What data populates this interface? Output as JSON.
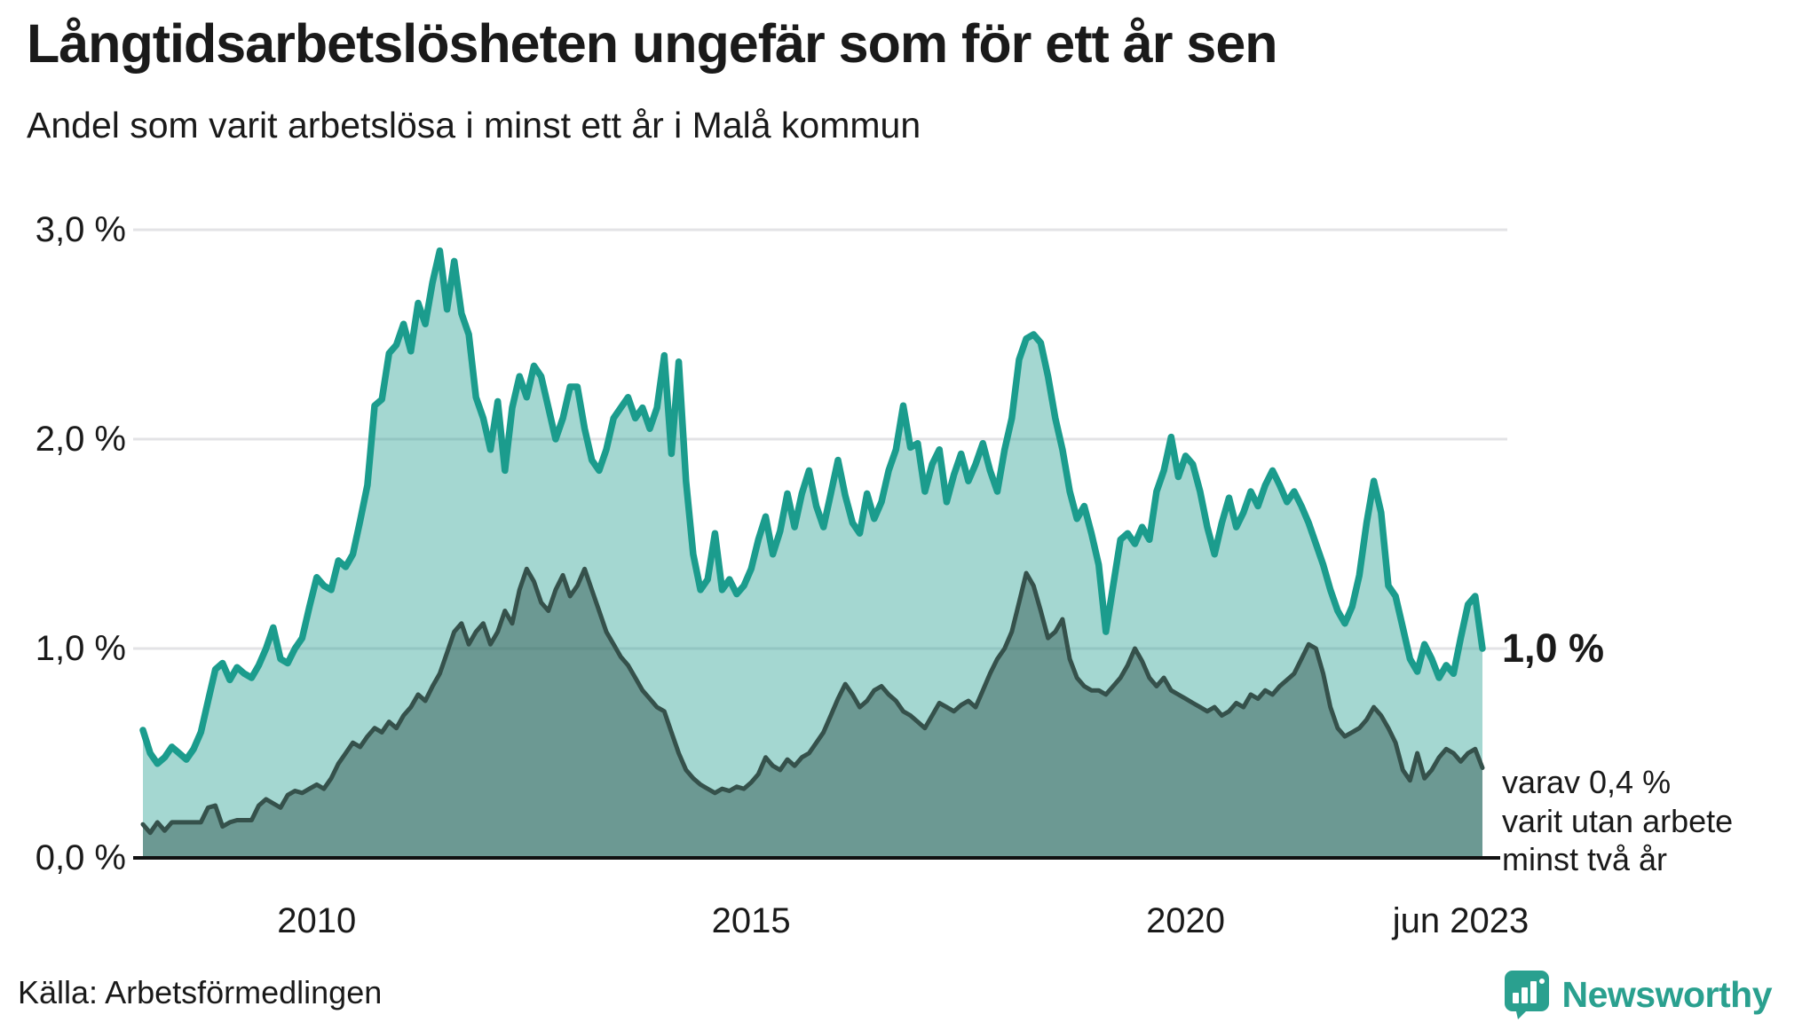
{
  "header": {
    "title": "Långtidsarbetslösheten ungefär som för ett år sen",
    "subtitle": "Andel som varit arbetslösa i minst ett år i Malå kommun"
  },
  "footer": {
    "source": "Källa: Arbetsförmedlingen",
    "logo_text": "Newsworthy",
    "logo_color": "#2aa08f"
  },
  "chart_data": {
    "type": "area",
    "title": "Andel som varit arbetslösa i minst ett år i Malå kommun",
    "x_start": "jan 2008",
    "x_end": "jun 2023",
    "x_interval": "monthly",
    "ylim": [
      0,
      3.0
    ],
    "unit": "%",
    "grid": "horizontal",
    "colors": {
      "line_1yr": "#1b9c8d",
      "fill_1yr": "rgba(27,156,141,0.40)",
      "line_2yr": "#35514b",
      "fill_2yr": "rgba(40,78,72,0.45)",
      "gridline": "#e3e3e6",
      "axis": "#111111"
    },
    "y_ticks": [
      {
        "label": "3,0 %",
        "value": 3.0
      },
      {
        "label": "2,0 %",
        "value": 2.0
      },
      {
        "label": "1,0 %",
        "value": 1.0
      },
      {
        "label": "0,0 %",
        "value": 0.0
      }
    ],
    "x_ticks": [
      {
        "label": "2010",
        "month_index": 24
      },
      {
        "label": "2015",
        "month_index": 84
      },
      {
        "label": "2020",
        "month_index": 144
      },
      {
        "label": "jun 2023",
        "month_index": 182
      }
    ],
    "end_labels": {
      "primary": "1,0 %",
      "secondary": [
        "varav 0,4 %",
        "varit utan arbete",
        "minst två år"
      ]
    },
    "series": [
      {
        "name": "Andel arbetslösa minst ett år",
        "end_value": 1.0,
        "values": [
          0.61,
          0.5,
          0.45,
          0.48,
          0.53,
          0.5,
          0.47,
          0.52,
          0.6,
          0.75,
          0.9,
          0.93,
          0.85,
          0.91,
          0.88,
          0.86,
          0.92,
          1.0,
          1.1,
          0.95,
          0.93,
          1.0,
          1.05,
          1.2,
          1.34,
          1.3,
          1.28,
          1.42,
          1.39,
          1.45,
          1.61,
          1.78,
          2.16,
          2.19,
          2.41,
          2.45,
          2.55,
          2.42,
          2.65,
          2.55,
          2.75,
          2.9,
          2.62,
          2.85,
          2.6,
          2.5,
          2.2,
          2.1,
          1.95,
          2.18,
          1.85,
          2.15,
          2.3,
          2.2,
          2.35,
          2.3,
          2.15,
          2.0,
          2.1,
          2.25,
          2.25,
          2.05,
          1.9,
          1.85,
          1.95,
          2.1,
          2.15,
          2.2,
          2.1,
          2.15,
          2.05,
          2.15,
          2.4,
          1.93,
          2.37,
          1.8,
          1.45,
          1.28,
          1.33,
          1.55,
          1.28,
          1.33,
          1.26,
          1.3,
          1.38,
          1.52,
          1.63,
          1.45,
          1.56,
          1.74,
          1.58,
          1.74,
          1.85,
          1.68,
          1.58,
          1.74,
          1.9,
          1.73,
          1.6,
          1.55,
          1.74,
          1.62,
          1.7,
          1.85,
          1.95,
          2.16,
          1.96,
          1.98,
          1.75,
          1.88,
          1.95,
          1.7,
          1.83,
          1.93,
          1.8,
          1.88,
          1.98,
          1.85,
          1.75,
          1.95,
          2.1,
          2.38,
          2.48,
          2.5,
          2.46,
          2.3,
          2.1,
          1.95,
          1.75,
          1.62,
          1.68,
          1.55,
          1.4,
          1.08,
          1.3,
          1.52,
          1.55,
          1.5,
          1.58,
          1.52,
          1.75,
          1.85,
          2.01,
          1.82,
          1.92,
          1.88,
          1.75,
          1.58,
          1.45,
          1.6,
          1.72,
          1.58,
          1.65,
          1.75,
          1.68,
          1.78,
          1.85,
          1.78,
          1.7,
          1.75,
          1.68,
          1.6,
          1.5,
          1.4,
          1.28,
          1.18,
          1.12,
          1.2,
          1.35,
          1.6,
          1.8,
          1.65,
          1.3,
          1.25,
          1.1,
          0.95,
          0.89,
          1.02,
          0.95,
          0.86,
          0.92,
          0.88,
          1.05,
          1.21,
          1.25,
          1.0
        ]
      },
      {
        "name": "varav utan arbete minst två år",
        "end_value": 0.4,
        "values": [
          0.16,
          0.12,
          0.17,
          0.13,
          0.17,
          0.17,
          0.17,
          0.17,
          0.17,
          0.24,
          0.25,
          0.15,
          0.17,
          0.18,
          0.18,
          0.18,
          0.25,
          0.28,
          0.26,
          0.24,
          0.3,
          0.32,
          0.31,
          0.33,
          0.35,
          0.33,
          0.38,
          0.45,
          0.5,
          0.55,
          0.53,
          0.58,
          0.62,
          0.6,
          0.65,
          0.62,
          0.68,
          0.72,
          0.78,
          0.75,
          0.82,
          0.88,
          0.98,
          1.08,
          1.12,
          1.02,
          1.08,
          1.12,
          1.02,
          1.08,
          1.18,
          1.12,
          1.28,
          1.38,
          1.32,
          1.22,
          1.18,
          1.28,
          1.35,
          1.25,
          1.3,
          1.38,
          1.28,
          1.18,
          1.08,
          1.02,
          0.96,
          0.92,
          0.86,
          0.8,
          0.76,
          0.72,
          0.7,
          0.6,
          0.5,
          0.42,
          0.38,
          0.35,
          0.33,
          0.31,
          0.33,
          0.32,
          0.34,
          0.33,
          0.36,
          0.4,
          0.48,
          0.44,
          0.42,
          0.47,
          0.44,
          0.48,
          0.5,
          0.55,
          0.6,
          0.68,
          0.76,
          0.83,
          0.78,
          0.72,
          0.75,
          0.8,
          0.82,
          0.78,
          0.75,
          0.7,
          0.68,
          0.65,
          0.62,
          0.68,
          0.74,
          0.72,
          0.7,
          0.73,
          0.75,
          0.72,
          0.8,
          0.88,
          0.95,
          1.0,
          1.08,
          1.22,
          1.36,
          1.3,
          1.18,
          1.05,
          1.08,
          1.14,
          0.95,
          0.86,
          0.82,
          0.8,
          0.8,
          0.78,
          0.82,
          0.86,
          0.92,
          1.0,
          0.94,
          0.86,
          0.82,
          0.86,
          0.8,
          0.78,
          0.76,
          0.74,
          0.72,
          0.7,
          0.72,
          0.68,
          0.7,
          0.74,
          0.72,
          0.78,
          0.76,
          0.8,
          0.78,
          0.82,
          0.85,
          0.88,
          0.95,
          1.02,
          1.0,
          0.88,
          0.72,
          0.62,
          0.58,
          0.6,
          0.62,
          0.66,
          0.72,
          0.68,
          0.62,
          0.55,
          0.42,
          0.37,
          0.5,
          0.38,
          0.42,
          0.48,
          0.52,
          0.5,
          0.46,
          0.5,
          0.52,
          0.43
        ]
      }
    ]
  }
}
